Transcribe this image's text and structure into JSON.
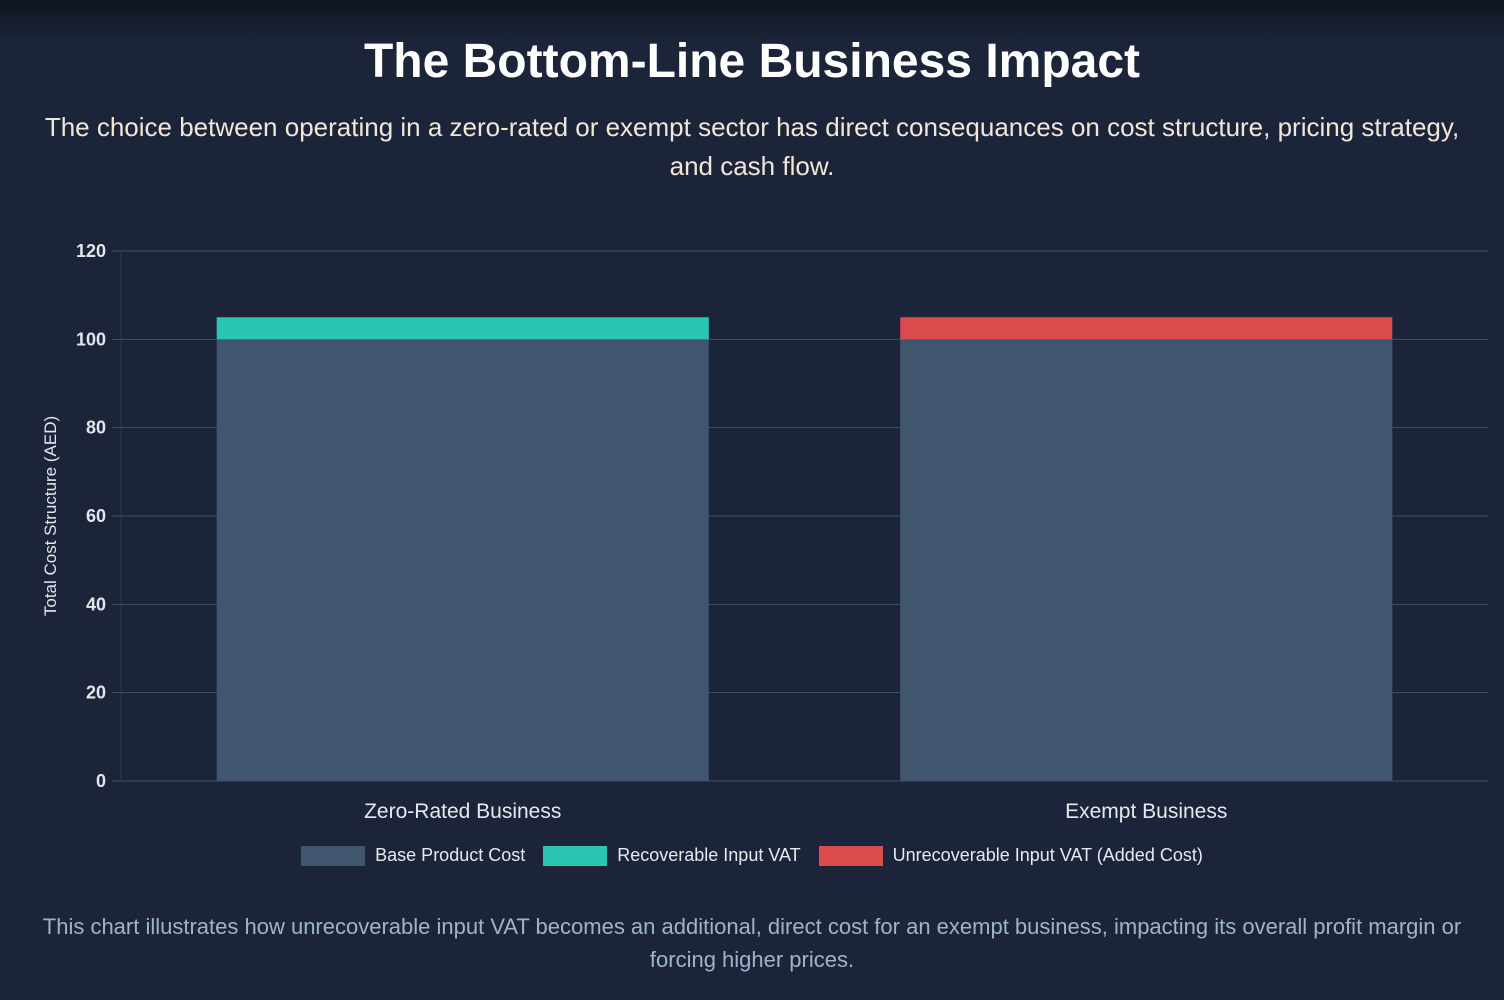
{
  "title": "The Bottom-Line Business Impact",
  "subtitle": "The choice between operating in a zero-rated or exempt sector has direct consequances on cost structure, pricing strategy, and cash flow.",
  "footer": "This chart illustrates how unrecoverable input VAT becomes an additional, direct cost for an exempt business, impacting its overall profit margin or forcing higher prices.",
  "chart_data": {
    "type": "bar",
    "stacked": true,
    "categories": [
      "Zero-Rated Business",
      "Exempt Business"
    ],
    "series": [
      {
        "name": "Base Product Cost",
        "values": [
          100,
          100
        ],
        "color": "#40566f"
      },
      {
        "name": "Recoverable Input VAT",
        "values": [
          5,
          0
        ],
        "color": "#2ac6b2"
      },
      {
        "name": "Unrecoverable Input VAT (Added Cost)",
        "values": [
          0,
          5
        ],
        "color": "#dc4b4b"
      }
    ],
    "ylabel": "Total Cost Structure (AED)",
    "xlabel": "",
    "ylim": [
      0,
      120
    ],
    "yticks": [
      0,
      20,
      40,
      60,
      80,
      100,
      120
    ],
    "grid": true,
    "legend": "bottom"
  }
}
